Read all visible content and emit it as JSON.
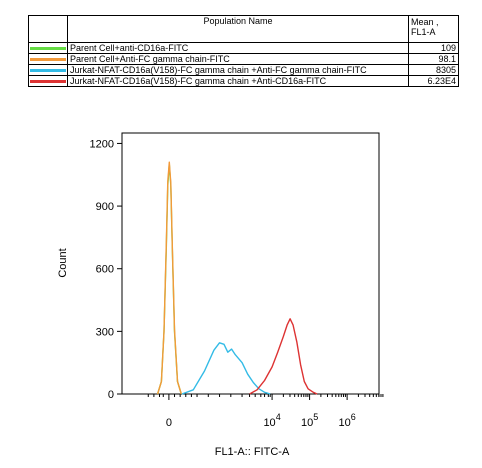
{
  "legend": {
    "header_name": "Population Name",
    "header_mean_line1": "Mean ,",
    "header_mean_line2": "FL1-A",
    "rows": [
      {
        "name": "Parent Cell+anti-CD16a-FITC",
        "mean": "109",
        "color": "#66dd44"
      },
      {
        "name": "Parent Cell+Anti-FC gamma chain-FITC",
        "mean": "98.1",
        "color": "#f39a3a"
      },
      {
        "name": "Jurkat-NFAT-CD16a(V158)-FC gamma chain +Anti-FC gamma chain-FITC",
        "mean": "8305",
        "color": "#33bbe6"
      },
      {
        "name": "Jurkat-NFAT-CD16a(V158)-FC gamma chain +Anti-CD16a-FITC",
        "mean": "6.23E4",
        "color": "#dd3333"
      }
    ]
  },
  "chart_data": {
    "type": "line",
    "title": "",
    "xlabel": "FL1-A:: FITC-A",
    "ylabel": "Count",
    "xscale": "biexponential",
    "ylim": [
      0,
      1250
    ],
    "yticks": [
      0,
      300,
      600,
      900,
      1200
    ],
    "ytick_labels": [
      "0",
      "300",
      "600",
      "900",
      "1200"
    ],
    "xtick_labels": [
      {
        "base": "0",
        "exp": ""
      },
      {
        "base": "10",
        "exp": "4"
      },
      {
        "base": "10",
        "exp": "5"
      },
      {
        "base": "10",
        "exp": "6"
      }
    ],
    "grid": false,
    "series": [
      {
        "name": "Parent Cell+anti-CD16a-FITC",
        "color": "#66dd44",
        "points": [
          [
            0.95,
            0
          ],
          [
            1.05,
            60
          ],
          [
            1.12,
            300
          ],
          [
            1.18,
            700
          ],
          [
            1.22,
            1000
          ],
          [
            1.26,
            1100
          ],
          [
            1.3,
            1000
          ],
          [
            1.34,
            700
          ],
          [
            1.4,
            300
          ],
          [
            1.48,
            60
          ],
          [
            1.58,
            0
          ]
        ]
      },
      {
        "name": "Parent Cell+Anti-FC gamma chain-FITC",
        "color": "#f39a3a",
        "points": [
          [
            0.95,
            0
          ],
          [
            1.05,
            60
          ],
          [
            1.12,
            300
          ],
          [
            1.18,
            720
          ],
          [
            1.22,
            1020
          ],
          [
            1.26,
            1110
          ],
          [
            1.3,
            1010
          ],
          [
            1.34,
            710
          ],
          [
            1.4,
            310
          ],
          [
            1.48,
            60
          ],
          [
            1.58,
            0
          ]
        ]
      },
      {
        "name": "Jurkat-NFAT-CD16a(V158)-FC gamma chain +Anti-FC gamma chain-FITC",
        "color": "#33bbe6",
        "points": [
          [
            1.6,
            0
          ],
          [
            1.9,
            20
          ],
          [
            2.2,
            110
          ],
          [
            2.45,
            210
          ],
          [
            2.6,
            245
          ],
          [
            2.72,
            238
          ],
          [
            2.82,
            200
          ],
          [
            2.92,
            215
          ],
          [
            3.02,
            188
          ],
          [
            3.2,
            150
          ],
          [
            3.35,
            95
          ],
          [
            3.5,
            55
          ],
          [
            3.65,
            25
          ],
          [
            3.8,
            8
          ],
          [
            3.95,
            0
          ]
        ]
      },
      {
        "name": "Jurkat-NFAT-CD16a(V158)-FC gamma chain +Anti-CD16a-FITC",
        "color": "#dd3333",
        "points": [
          [
            3.4,
            0
          ],
          [
            3.6,
            20
          ],
          [
            3.8,
            65
          ],
          [
            4.0,
            130
          ],
          [
            4.15,
            200
          ],
          [
            4.3,
            275
          ],
          [
            4.4,
            330
          ],
          [
            4.48,
            360
          ],
          [
            4.56,
            330
          ],
          [
            4.66,
            250
          ],
          [
            4.76,
            140
          ],
          [
            4.86,
            60
          ],
          [
            4.96,
            25
          ],
          [
            5.1,
            8
          ],
          [
            5.2,
            0
          ]
        ]
      }
    ]
  }
}
